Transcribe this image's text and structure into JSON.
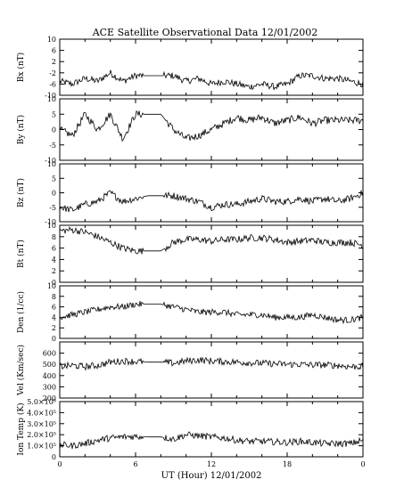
{
  "chart_data": {
    "type": "line",
    "title": "ACE Satellite Observational Data   12/01/2002",
    "xlabel": "UT (Hour)   12/01/2002",
    "x_ticks": [
      "0",
      "6",
      "12",
      "18",
      "0"
    ],
    "xlim": [
      0,
      24
    ],
    "grid": false,
    "panels": [
      {
        "ylabel": "Bx (nT)",
        "ylim": [
          -10,
          10
        ],
        "yticks": [
          "10",
          "6",
          "2",
          "-2",
          "-6",
          "-10"
        ],
        "tick_values": [
          10,
          6,
          2,
          -2,
          -6,
          -10
        ],
        "x": [
          0,
          1,
          2,
          3,
          4,
          5,
          6,
          7,
          8,
          9,
          10,
          11,
          12,
          13,
          14,
          15,
          16,
          17,
          18,
          19,
          20,
          21,
          22,
          23,
          24
        ],
        "values": [
          -5,
          -6,
          -4,
          -5,
          -2,
          -5,
          -3,
          -3,
          -3,
          -3,
          -5,
          -4,
          -6,
          -5,
          -6,
          -7,
          -6,
          -7,
          -6,
          -3,
          -3,
          -4,
          -4,
          -5,
          -6
        ]
      },
      {
        "ylabel": "By (nT)",
        "ylim": [
          -10,
          10
        ],
        "yticks": [
          "10",
          "5",
          "0",
          "-5",
          "-10"
        ],
        "tick_values": [
          10,
          5,
          0,
          -5,
          -10
        ],
        "x": [
          0,
          1,
          2,
          3,
          4,
          5,
          6,
          7,
          8,
          9,
          10,
          11,
          12,
          13,
          14,
          15,
          16,
          17,
          18,
          19,
          20,
          21,
          22,
          23,
          24
        ],
        "values": [
          0,
          -2,
          5,
          0,
          5,
          -3,
          5,
          5,
          5,
          0,
          -3,
          -2,
          0,
          2,
          4,
          3,
          4,
          2,
          3,
          4,
          2,
          3,
          3,
          3,
          3
        ]
      },
      {
        "ylabel": "Bz (nT)",
        "ylim": [
          -10,
          10
        ],
        "yticks": [
          "10",
          "5",
          "0",
          "-5",
          "-10"
        ],
        "tick_values": [
          10,
          5,
          0,
          -5,
          -10
        ],
        "x": [
          0,
          1,
          2,
          3,
          4,
          5,
          6,
          7,
          8,
          9,
          10,
          11,
          12,
          13,
          14,
          15,
          16,
          17,
          18,
          19,
          20,
          21,
          22,
          23,
          24
        ],
        "values": [
          -5,
          -6,
          -4,
          -3,
          0,
          -3,
          -2,
          -1,
          -1,
          -1,
          -2,
          -3,
          -5,
          -4,
          -4,
          -3,
          -2,
          -3,
          -3,
          -2,
          -3,
          -2,
          -3,
          -2,
          0
        ]
      },
      {
        "ylabel": "Bt (nT)",
        "ylim": [
          0,
          10
        ],
        "yticks": [
          "10",
          "8",
          "6",
          "4",
          "2",
          "0"
        ],
        "tick_values": [
          10,
          8,
          6,
          4,
          2,
          0
        ],
        "x": [
          0,
          1,
          2,
          3,
          4,
          5,
          6,
          7,
          8,
          9,
          10,
          11,
          12,
          13,
          14,
          15,
          16,
          17,
          18,
          19,
          20,
          21,
          22,
          23,
          24
        ],
        "values": [
          9,
          9.2,
          8.8,
          8,
          7,
          6,
          5.5,
          5.5,
          5.5,
          7,
          7.5,
          7.5,
          7.2,
          7.5,
          7.5,
          7.8,
          7.8,
          7.5,
          7,
          7.2,
          7.4,
          7,
          7,
          7,
          6.5
        ]
      },
      {
        "ylabel": "Den (1/cc)",
        "ylim": [
          0,
          10
        ],
        "yticks": [
          "10",
          "8",
          "6",
          "4",
          "2",
          "0"
        ],
        "tick_values": [
          10,
          8,
          6,
          4,
          2,
          0
        ],
        "x": [
          0,
          1,
          2,
          3,
          4,
          5,
          6,
          7,
          8,
          9,
          10,
          11,
          12,
          13,
          14,
          15,
          16,
          17,
          18,
          19,
          20,
          21,
          22,
          23,
          24
        ],
        "values": [
          4,
          4.5,
          5,
          5.5,
          6,
          6,
          6.5,
          6.5,
          6.5,
          6,
          5.5,
          5,
          5,
          5,
          4.5,
          4.5,
          4.5,
          4,
          4,
          4,
          4.5,
          4,
          3.5,
          3.5,
          4
        ]
      },
      {
        "ylabel": "Vel (Km/sec)",
        "ylim": [
          200,
          700
        ],
        "yticks": [
          "600",
          "500",
          "400",
          "300",
          "200"
        ],
        "tick_values": [
          600,
          500,
          400,
          300,
          200
        ],
        "x": [
          0,
          1,
          2,
          3,
          4,
          5,
          6,
          7,
          8,
          9,
          10,
          11,
          12,
          13,
          14,
          15,
          16,
          17,
          18,
          19,
          20,
          21,
          22,
          23,
          24
        ],
        "values": [
          480,
          490,
          480,
          490,
          520,
          530,
          525,
          520,
          520,
          510,
          530,
          540,
          530,
          525,
          520,
          515,
          510,
          505,
          500,
          500,
          495,
          495,
          490,
          480,
          480
        ]
      },
      {
        "ylabel": "Ion Temp (K)",
        "ylim": [
          0,
          500000
        ],
        "yticks": [
          "5.0×10⁵",
          "4.0×10⁵",
          "3.0×10⁵",
          "2.0×10⁵",
          "1.0×10⁵",
          "0"
        ],
        "tick_values": [
          500000,
          400000,
          300000,
          200000,
          100000,
          0
        ],
        "x": [
          0,
          1,
          2,
          3,
          4,
          5,
          6,
          7,
          8,
          9,
          10,
          11,
          12,
          13,
          14,
          15,
          16,
          17,
          18,
          19,
          20,
          21,
          22,
          23,
          24
        ],
        "values": [
          110000,
          100000,
          120000,
          150000,
          170000,
          180000,
          185000,
          180000,
          180000,
          160000,
          200000,
          190000,
          180000,
          170000,
          150000,
          140000,
          140000,
          135000,
          130000,
          140000,
          130000,
          120000,
          120000,
          120000,
          150000
        ]
      }
    ]
  }
}
